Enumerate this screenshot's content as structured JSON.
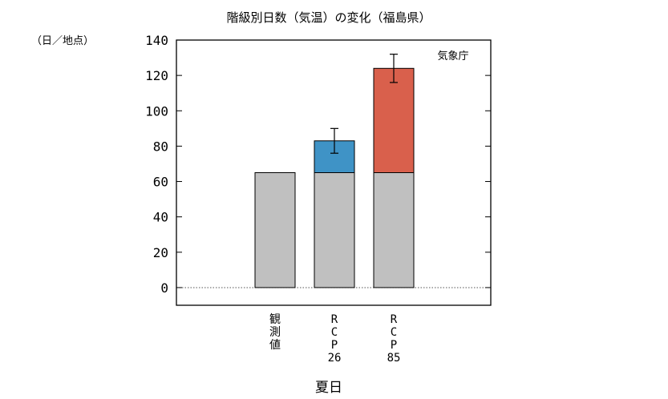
{
  "chart_data": {
    "type": "bar",
    "title": "階級別日数（気温）の変化（福島県）",
    "unit_label": "（日／地点）",
    "source_label": "気象庁",
    "xlabel": "夏日",
    "ylim": [
      -10,
      140
    ],
    "yticks": [
      0,
      20,
      40,
      60,
      80,
      100,
      120,
      140
    ],
    "categories": [
      "観測値",
      "RCP26",
      "RCP85"
    ],
    "category_label_lines": [
      [
        "観",
        "測",
        "値"
      ],
      [
        "R",
        "C",
        "P",
        "26"
      ],
      [
        "R",
        "C",
        "P",
        "85"
      ]
    ],
    "series": [
      {
        "name": "",
        "values": [
          65,
          65,
          65
        ],
        "color": "#c0c0c0"
      },
      {
        "name": "",
        "values": [
          0,
          18,
          59
        ],
        "color": "#3f93c6",
        "colors": [
          null,
          "#3f93c6",
          "#d9604c"
        ]
      }
    ],
    "totals": [
      65,
      83,
      124
    ],
    "error_bars": [
      null,
      {
        "low": 76,
        "high": 90
      },
      {
        "low": 116,
        "high": 132
      }
    ],
    "grid": false,
    "zero_line": "dotted"
  }
}
